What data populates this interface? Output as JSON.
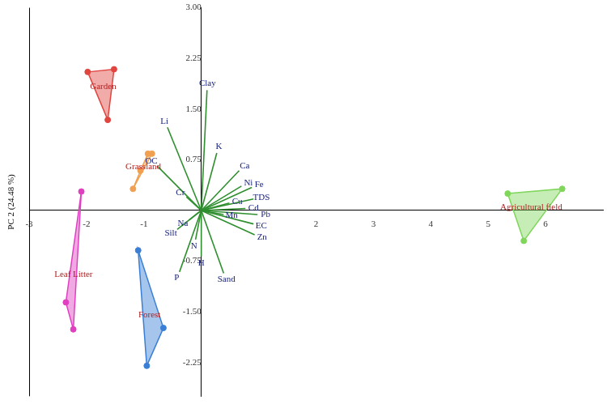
{
  "chart_data": {
    "type": "scatter",
    "y_label": "PC 2 (24.48 %)",
    "xlim": [
      -3,
      7
    ],
    "ylim": [
      -2.75,
      3.0
    ],
    "xticks": [
      -3,
      -2,
      -1,
      2,
      3,
      4,
      5,
      6
    ],
    "yticks": [
      -2.25,
      {
        "value": -1.5,
        "label": "-1.50"
      },
      -0.75,
      0.75,
      {
        "value": 1.5,
        "label": "1.50"
      },
      2.25,
      {
        "value": 3.0,
        "label": "3.00"
      }
    ],
    "grid": false,
    "marker": "circle",
    "groups": [
      {
        "name": "Garden",
        "color": "#e0453f",
        "x": [
          -1.98,
          -1.52,
          -1.63
        ],
        "y": [
          2.05,
          2.09,
          1.34
        ]
      },
      {
        "name": "Grassland",
        "color": "#f0a050",
        "x": [
          -1.19,
          -1.06,
          -0.93,
          -0.86
        ],
        "y": [
          0.32,
          0.59,
          0.84,
          0.84
        ]
      },
      {
        "name": "Leaf Litter",
        "color": "#e040c0",
        "x": [
          -2.09,
          -2.36,
          -2.23
        ],
        "y": [
          0.28,
          -1.36,
          -1.76
        ]
      },
      {
        "name": "Forest",
        "color": "#3a7fd5",
        "x": [
          -1.1,
          -0.66,
          -0.95
        ],
        "y": [
          -0.59,
          -1.74,
          -2.3
        ]
      },
      {
        "name": "Agricultural field",
        "color": "#7fd65a",
        "x": [
          5.34,
          6.29,
          5.62
        ],
        "y": [
          0.25,
          0.32,
          -0.45
        ]
      }
    ],
    "loadings": {
      "color": "#2f8f2f",
      "line_style": "solid",
      "names": [
        "Clay",
        "Li",
        "K",
        "OC",
        "Ca",
        "Ni",
        "Fe",
        "TDS",
        "Cr",
        "Cu",
        "Cd",
        "Mn",
        "Pb",
        "EC",
        "Zn",
        "Na",
        "Silt",
        "N",
        "H",
        "P",
        "Sand"
      ],
      "x": [
        0.1,
        -0.59,
        0.27,
        -0.77,
        0.66,
        0.7,
        0.88,
        0.91,
        -0.26,
        0.49,
        0.77,
        0.39,
        0.98,
        0.91,
        0.93,
        -0.21,
        -0.42,
        -0.1,
        0.0,
        -0.38,
        0.39
      ],
      "y": [
        1.78,
        1.23,
        0.85,
        0.66,
        0.59,
        0.36,
        0.34,
        0.17,
        0.2,
        0.11,
        0.03,
        -0.06,
        -0.06,
        -0.2,
        -0.36,
        -0.14,
        -0.28,
        -0.43,
        -0.68,
        -0.91,
        -0.93
      ]
    }
  }
}
